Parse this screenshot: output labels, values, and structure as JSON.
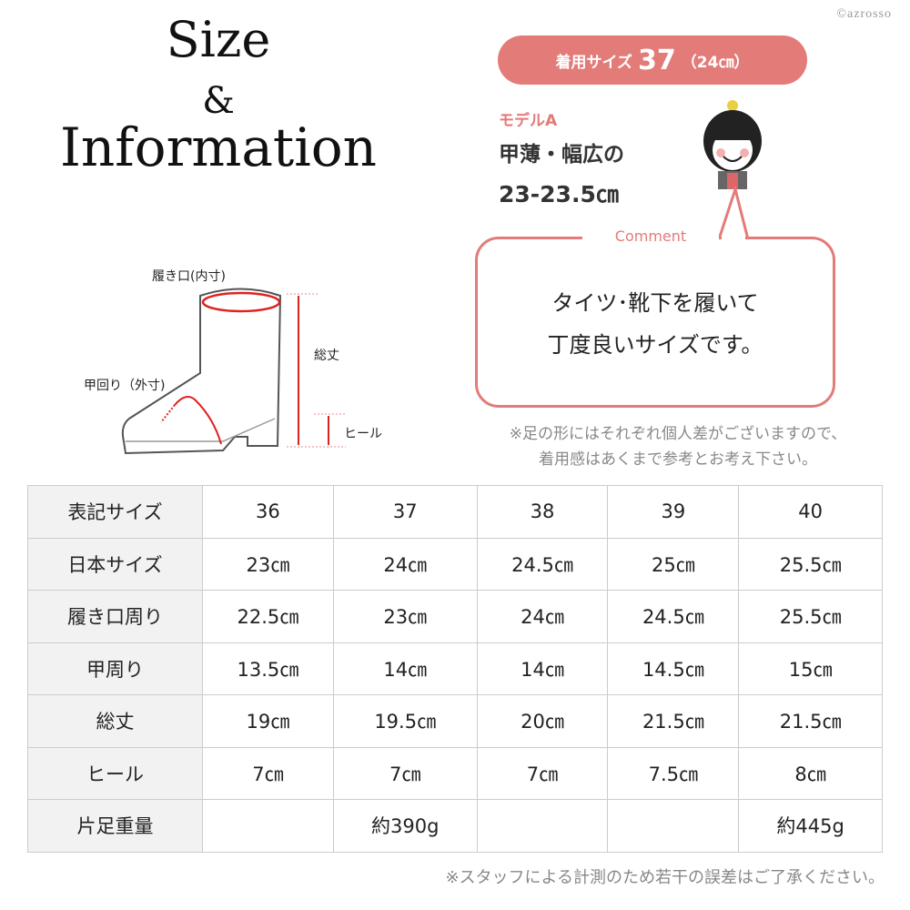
{
  "heading": {
    "line1": "Size",
    "line2": "&",
    "line3": "Information"
  },
  "copyright": "©azrosso",
  "worn_size": {
    "label": "着用サイズ",
    "size": "37",
    "cm": "（24㎝）"
  },
  "model": {
    "name": "モデルA",
    "foot_type": "甲薄・幅広の",
    "foot_size": "23-23.5㎝"
  },
  "comment": {
    "title": "Comment",
    "line1": "タイツ･靴下を履いて",
    "line2": "丁度良いサイズです。"
  },
  "note_top": {
    "line1": "※足の形にはそれぞれ個人差がございますので、",
    "line2": "着用感はあくまで参考とお考え下さい。"
  },
  "diagram": {
    "opening": "履き口(内寸)",
    "total_height": "総丈",
    "instep": "甲回り（外寸)",
    "heel": "ヒール"
  },
  "accent_color": "#e37b78",
  "table": {
    "rows": [
      {
        "label": "表記サイズ",
        "values": [
          "36",
          "37",
          "38",
          "39",
          "40"
        ]
      },
      {
        "label": "日本サイズ",
        "values": [
          "23㎝",
          "24㎝",
          "24.5㎝",
          "25㎝",
          "25.5㎝"
        ]
      },
      {
        "label": "履き口周り",
        "values": [
          "22.5㎝",
          "23㎝",
          "24㎝",
          "24.5㎝",
          "25.5㎝"
        ]
      },
      {
        "label": "甲周り",
        "values": [
          "13.5㎝",
          "14㎝",
          "14㎝",
          "14.5㎝",
          "15㎝"
        ]
      },
      {
        "label": "総丈",
        "values": [
          "19㎝",
          "19.5㎝",
          "20㎝",
          "21.5㎝",
          "21.5㎝"
        ]
      },
      {
        "label": "ヒール",
        "values": [
          "7㎝",
          "7㎝",
          "7㎝",
          "7.5㎝",
          "8㎝"
        ]
      },
      {
        "label": "片足重量",
        "values": [
          "",
          "約390g",
          "",
          "",
          "約445g"
        ]
      }
    ]
  },
  "note_bottom": "※スタッフによる計測のため若干の誤差はご了承ください。"
}
